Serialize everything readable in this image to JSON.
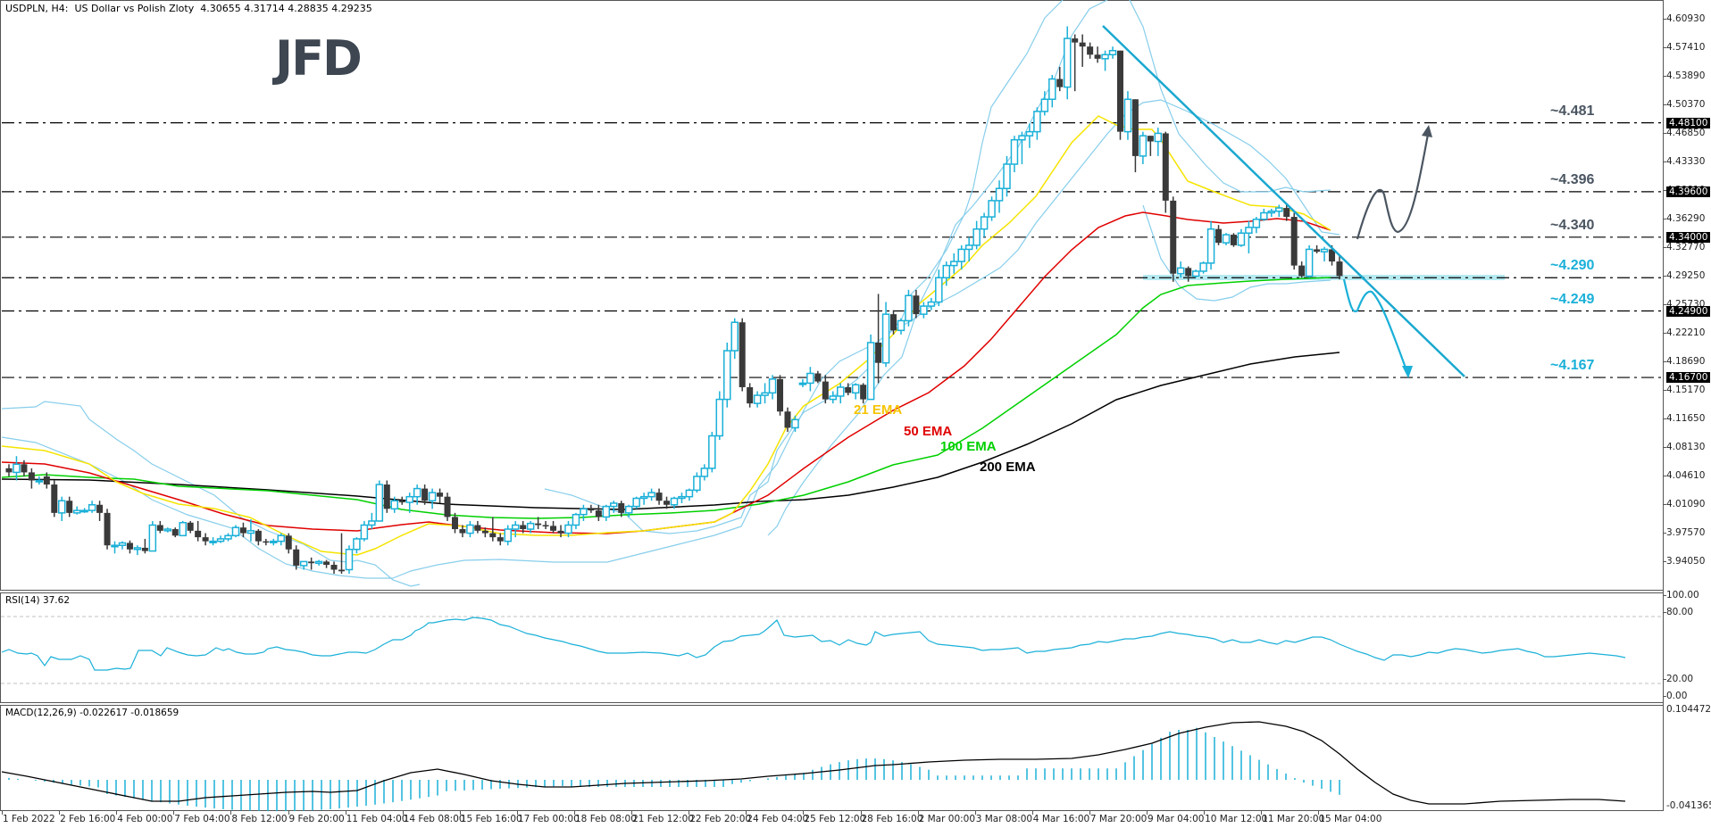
{
  "header": {
    "symbol": "USDPLN, H4:",
    "description": "US Dollar vs Polish Zloty",
    "ohlc": "4.30655 4.31714 4.28835 4.29235"
  },
  "logo": {
    "text": "JFD"
  },
  "price_axis": {
    "ticks": [
      "4.60930",
      "4.57410",
      "4.53890",
      "4.50370",
      "4.46850",
      "4.43330",
      "4.39810",
      "4.36290",
      "4.32770",
      "4.29250",
      "4.25730",
      "4.22210",
      "4.18690",
      "4.15170",
      "4.11650",
      "4.08130",
      "4.04610",
      "4.01090",
      "3.97570",
      "3.94050"
    ],
    "badges": [
      "4.48100",
      "4.39600",
      "4.34000",
      "4.24900",
      "4.16700"
    ]
  },
  "levels": [
    {
      "label": "~4.481",
      "price": 4.481,
      "color": "#4a5561"
    },
    {
      "label": "~4.396",
      "price": 4.396,
      "color": "#4a5561"
    },
    {
      "label": "~4.340",
      "price": 4.34,
      "color": "#4a5561"
    },
    {
      "label": "~4.290",
      "price": 4.29,
      "color": "#1ab0d8"
    },
    {
      "label": "~4.249",
      "price": 4.249,
      "color": "#1ab0d8"
    },
    {
      "label": "~4.167",
      "price": 4.167,
      "color": "#1ab0d8"
    }
  ],
  "ema_labels": {
    "ema21": {
      "text": "21 EMA",
      "color": "#f5c400"
    },
    "ema50": {
      "text": "50 EMA",
      "color": "#e00000"
    },
    "ema100": {
      "text": "100 EMA",
      "color": "#00d000"
    },
    "ema200": {
      "text": "200 EMA",
      "color": "#000000"
    }
  },
  "rsi": {
    "title": "RSI(14) 37.62",
    "axis": [
      "100.00",
      "80.00",
      "20.00",
      "0.00"
    ]
  },
  "macd": {
    "title": "MACD(12,26,9) -0.022617 -0.018659",
    "axis": [
      "0.104472",
      "-0.041365"
    ]
  },
  "time_axis": [
    "1 Feb 2022",
    "2 Feb 16:00",
    "4 Feb 00:00",
    "7 Feb 04:00",
    "8 Feb 12:00",
    "9 Feb 20:00",
    "11 Feb 04:00",
    "14 Feb 08:00",
    "15 Feb 16:00",
    "17 Feb 00:00",
    "18 Feb 08:00",
    "21 Feb 12:00",
    "22 Feb 20:00",
    "24 Feb 04:00",
    "25 Feb 12:00",
    "28 Feb 16:00",
    "2 Mar 00:00",
    "3 Mar 08:00",
    "4 Mar 16:00",
    "7 Mar 20:00",
    "9 Mar 04:00",
    "10 Mar 12:00",
    "11 Mar 20:00",
    "15 Mar 04:00"
  ],
  "colors": {
    "bull_candle": "#1ab0d8",
    "bear_candle": "#3a3a3a",
    "bollinger": "#87ceeb",
    "trendline": "#1aa8d0",
    "support_zone": "#a8e6ee"
  },
  "chart_data": {
    "type": "candlestick",
    "title": "USDPLN, H4: US Dollar vs Polish Zloty",
    "ylim": [
      3.92,
      4.62
    ],
    "indicators": [
      "EMA 21",
      "EMA 50",
      "EMA 100",
      "EMA 200",
      "Bollinger Bands",
      "RSI(14)",
      "MACD(12,26,9)"
    ],
    "last_ohlc": {
      "open": 4.30655,
      "high": 4.31714,
      "low": 4.28835,
      "close": 4.29235
    },
    "key_levels": [
      4.481,
      4.396,
      4.34,
      4.29,
      4.249,
      4.167
    ],
    "approx_close_path": [
      {
        "x": "1 Feb 2022",
        "close": 4.05
      },
      {
        "x": "4 Feb 00:00",
        "close": 3.98
      },
      {
        "x": "9 Feb 20:00",
        "close": 3.93
      },
      {
        "x": "11 Feb 04:00",
        "close": 4.03
      },
      {
        "x": "15 Feb 16:00",
        "close": 3.96
      },
      {
        "x": "21 Feb 12:00",
        "close": 4.02
      },
      {
        "x": "24 Feb 04:00",
        "close": 4.23
      },
      {
        "x": "25 Feb 12:00",
        "close": 4.1
      },
      {
        "x": "28 Feb 16:00",
        "close": 4.18
      },
      {
        "x": "2 Mar 00:00",
        "close": 4.34
      },
      {
        "x": "3 Mar 08:00",
        "close": 4.4
      },
      {
        "x": "4 Mar 16:00",
        "close": 4.58
      },
      {
        "x": "7 Mar 20:00",
        "close": 4.57
      },
      {
        "x": "9 Mar 04:00",
        "close": 4.29
      },
      {
        "x": "10 Mar 12:00",
        "close": 4.33
      },
      {
        "x": "11 Mar 20:00",
        "close": 4.38
      },
      {
        "x": "15 Mar 04:00",
        "close": 4.292
      }
    ],
    "rsi_last": 37.62,
    "rsi_levels": [
      20,
      80
    ],
    "macd_last": {
      "main": -0.022617,
      "signal": -0.018659
    },
    "macd_range": [
      -0.041365,
      0.104472
    ]
  }
}
